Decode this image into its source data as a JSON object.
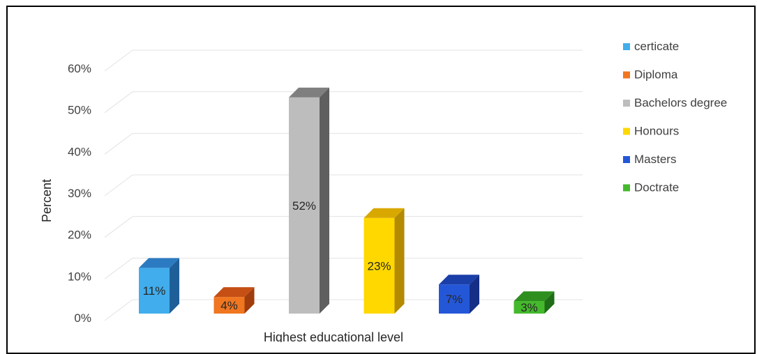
{
  "chart_data": {
    "type": "bar",
    "title": "",
    "xlabel": "Highest educational level",
    "ylabel": "Percent",
    "ylim": [
      0,
      60
    ],
    "yticks": [
      "0%",
      "10%",
      "20%",
      "30%",
      "40%",
      "50%",
      "60%"
    ],
    "grid": true,
    "legend_position": "right",
    "series": [
      {
        "name": "certicate",
        "values": [
          11
        ],
        "label": "11%",
        "colors": {
          "front": "#41adec",
          "side": "#1f5f99",
          "top": "#2c7bc2"
        }
      },
      {
        "name": "Diploma",
        "values": [
          4
        ],
        "label": "4%",
        "colors": {
          "front": "#f07620",
          "side": "#a13c0c",
          "top": "#c54f14"
        }
      },
      {
        "name": "Bachelors degree",
        "values": [
          52
        ],
        "label": "52%",
        "colors": {
          "front": "#bdbdbd",
          "side": "#5f5f5f",
          "top": "#7f7f7f"
        }
      },
      {
        "name": "Honours",
        "values": [
          23
        ],
        "label": "23%",
        "colors": {
          "front": "#ffd800",
          "side": "#b38a00",
          "top": "#d9a800"
        }
      },
      {
        "name": "Masters",
        "values": [
          7
        ],
        "label": "7%",
        "colors": {
          "front": "#2457d8",
          "side": "#152f86",
          "top": "#1b3fa8"
        }
      },
      {
        "name": "Doctrate",
        "values": [
          3
        ],
        "label": "3%",
        "colors": {
          "front": "#44b92c",
          "side": "#1f6d16",
          "top": "#2e8f1f"
        }
      }
    ]
  }
}
